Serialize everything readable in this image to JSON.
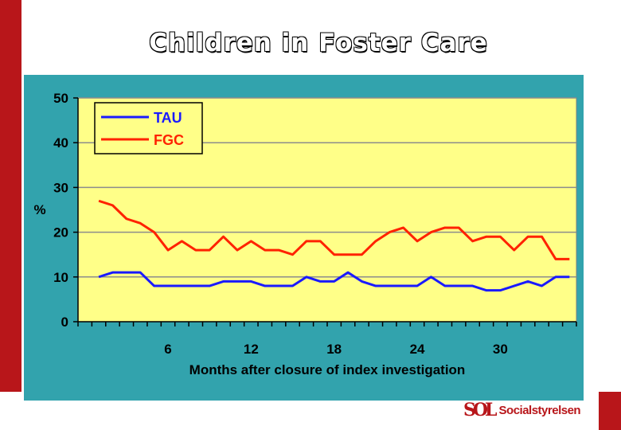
{
  "slide": {
    "title": "Children in Foster Care",
    "logo": {
      "mark": "SOL",
      "text": "Socialstyrelsen"
    }
  },
  "colors": {
    "brand_red": "#b8161a",
    "panel": "#32a3ad",
    "plot_bg": "#ffff88",
    "tau": "#1a1aff",
    "fgc": "#ff2200"
  },
  "chart_data": {
    "type": "line",
    "title": "",
    "xlabel": "Months after closure of index investigation",
    "ylabel": "%",
    "x": [
      1,
      2,
      3,
      4,
      5,
      6,
      7,
      8,
      9,
      10,
      11,
      12,
      13,
      14,
      15,
      16,
      17,
      18,
      19,
      20,
      21,
      22,
      23,
      24,
      25,
      26,
      27,
      28,
      29,
      30,
      31,
      32,
      33,
      34,
      35
    ],
    "xlim": [
      -0.5,
      35.5
    ],
    "ylim": [
      0,
      50
    ],
    "xticks": [
      6,
      12,
      18,
      24,
      30
    ],
    "yticks": [
      0,
      10,
      20,
      30,
      40,
      50
    ],
    "grid": true,
    "legend": "top-left",
    "series": [
      {
        "name": "TAU",
        "color": "#1a1aff",
        "values": [
          10,
          11,
          11,
          11,
          8,
          8,
          8,
          8,
          8,
          9,
          9,
          9,
          8,
          8,
          8,
          10,
          9,
          9,
          11,
          9,
          8,
          8,
          8,
          8,
          10,
          8,
          8,
          8,
          7,
          7,
          8,
          9,
          8,
          10,
          10
        ]
      },
      {
        "name": "FGC",
        "color": "#ff2200",
        "values": [
          27,
          26,
          23,
          22,
          20,
          16,
          18,
          16,
          16,
          19,
          16,
          18,
          16,
          16,
          15,
          18,
          18,
          15,
          15,
          15,
          18,
          20,
          21,
          18,
          20,
          21,
          21,
          18,
          19,
          19,
          16,
          19,
          19,
          14,
          14
        ]
      }
    ]
  }
}
